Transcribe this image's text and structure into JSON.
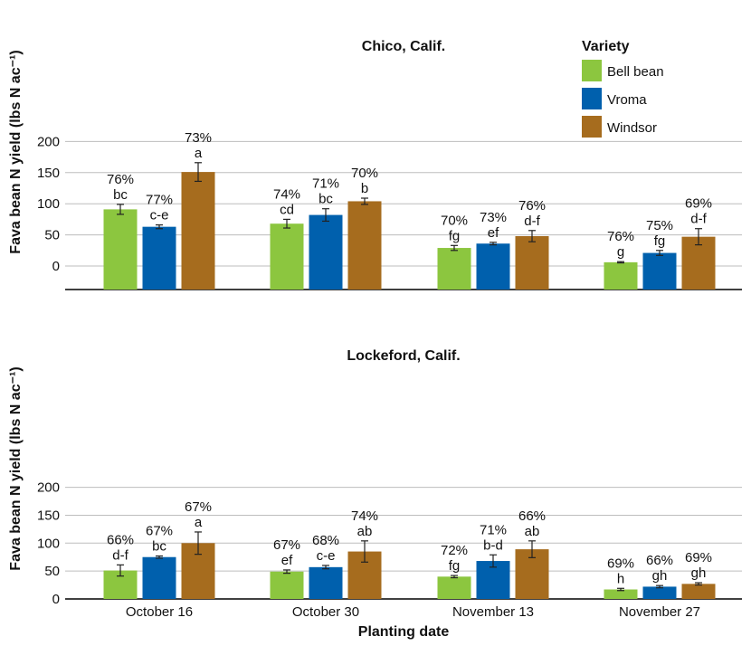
{
  "colors": {
    "Bell bean": "#8cc63f",
    "Vroma": "#0060ad",
    "Windsor": "#a66c1e",
    "grid": "#bdbdbd",
    "axis": "#000000",
    "error": "#222222"
  },
  "legend": {
    "title": "Variety",
    "placement": "top-right of top panel"
  },
  "x_title": "Planting date",
  "chart_data": [
    {
      "type": "bar",
      "title": "Chico, Calif.",
      "ylabel": "Fava bean N yield (lbs N ac⁻¹)",
      "ylim": [
        -20,
        200
      ],
      "yticks": [
        0,
        50,
        100,
        150,
        200
      ],
      "grid": true,
      "categories": [
        "October 16",
        "October 30",
        "November 13",
        "November 27"
      ],
      "series": [
        {
          "name": "Bell bean",
          "values": [
            91,
            68,
            29,
            6
          ],
          "errors": [
            8,
            7,
            4,
            1
          ],
          "labels": [
            "76%\nbc",
            "74%\ncd",
            "70%\nfg",
            "76%\ng"
          ]
        },
        {
          "name": "Vroma",
          "values": [
            63,
            82,
            36,
            21
          ],
          "errors": [
            3,
            10,
            2,
            4
          ],
          "labels": [
            "77%\nc-e",
            "71%\nbc",
            "73%\nef",
            "75%\nfg"
          ]
        },
        {
          "name": "Windsor",
          "values": [
            151,
            104,
            48,
            47
          ],
          "errors": [
            15,
            5,
            9,
            13
          ],
          "labels": [
            "73%\na",
            "70%\nb",
            "76%\nd-f",
            "69%\nd-f"
          ]
        }
      ]
    },
    {
      "type": "bar",
      "title": "Lockeford, Calif.",
      "ylabel": "Fava bean N yield (lbs N ac⁻¹)",
      "ylim": [
        0,
        200
      ],
      "yticks": [
        0,
        50,
        100,
        150,
        200
      ],
      "grid": true,
      "categories": [
        "October 16",
        "October 30",
        "November 13",
        "November 27"
      ],
      "series": [
        {
          "name": "Bell bean",
          "values": [
            51,
            49,
            40,
            17
          ],
          "errors": [
            10,
            3,
            2,
            2
          ],
          "labels": [
            "66%\nd-f",
            "67%\nef",
            "72%\nfg",
            "69%\nh"
          ]
        },
        {
          "name": "Vroma",
          "values": [
            75,
            57,
            68,
            22
          ],
          "errors": [
            2,
            3,
            11,
            2
          ],
          "labels": [
            "67%\nbc",
            "68%\nc-e",
            "71%\nb-d",
            "66%\ngh"
          ]
        },
        {
          "name": "Windsor",
          "values": [
            100,
            85,
            89,
            27
          ],
          "errors": [
            20,
            19,
            15,
            2
          ],
          "labels": [
            "67%\na",
            "74%\nab",
            "66%\nab",
            "69%\ngh"
          ]
        }
      ]
    }
  ]
}
